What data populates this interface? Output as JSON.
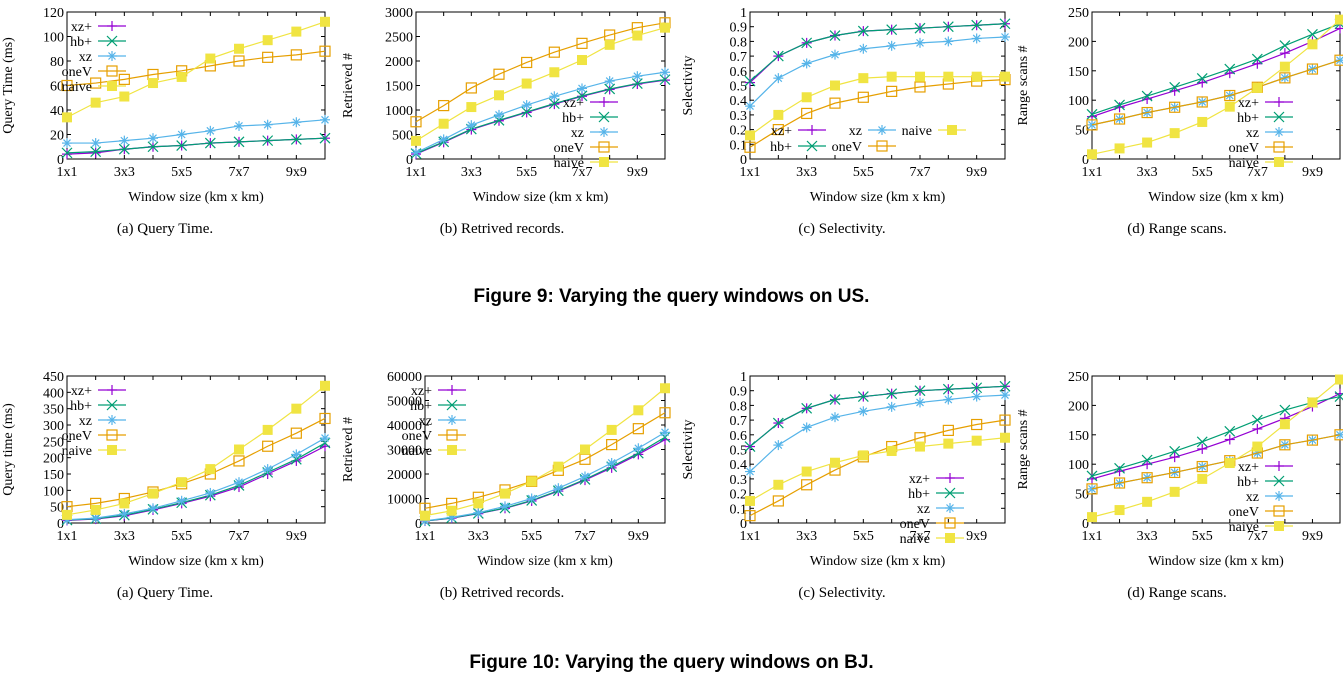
{
  "colors": {
    "xz+": "#9400d3",
    "hb+": "#009e73",
    "xz": "#56b4e9",
    "oneV": "#e69f00",
    "naive": "#f0e442"
  },
  "figures": [
    {
      "caption": "Figure 9: Varying the query windows on US."
    },
    {
      "caption": "Figure 10: Varying the query windows on BJ."
    }
  ],
  "chart_data": [
    {
      "id": "us_a",
      "type": "line",
      "subcaption": "(a)  Query Time.",
      "xlabel": "Window size (km x km)",
      "ylabel": "Query Time (ms)",
      "x": [
        1,
        2,
        3,
        4,
        5,
        6,
        7,
        8,
        9,
        10
      ],
      "xticks": [
        "1x1",
        "3x3",
        "5x5",
        "7x7",
        "9x9"
      ],
      "xtick_pos": [
        1,
        3,
        5,
        7,
        9
      ],
      "ylim": [
        0,
        120
      ],
      "yticks": [
        0,
        20,
        40,
        60,
        80,
        100,
        120
      ],
      "legend_position": "top-left",
      "series": [
        {
          "name": "xz+",
          "values": [
            4,
            5,
            8,
            10,
            11,
            13,
            14,
            15,
            16,
            17
          ]
        },
        {
          "name": "hb+",
          "values": [
            5,
            6,
            8,
            10,
            11,
            13,
            14,
            15,
            16,
            17
          ]
        },
        {
          "name": "xz",
          "values": [
            13,
            13,
            15,
            17,
            20,
            23,
            27,
            28,
            30,
            32
          ]
        },
        {
          "name": "oneV",
          "values": [
            60,
            62,
            65,
            69,
            72,
            76,
            80,
            83,
            85,
            88
          ]
        },
        {
          "name": "naive",
          "values": [
            34,
            46,
            51,
            62,
            67,
            82,
            90,
            97,
            104,
            112
          ]
        }
      ]
    },
    {
      "id": "us_b",
      "type": "line",
      "subcaption": "(b)  Retrived records.",
      "xlabel": "Window size (km x km)",
      "ylabel": "Retrieved #",
      "x": [
        1,
        2,
        3,
        4,
        5,
        6,
        7,
        8,
        9,
        10
      ],
      "xticks": [
        "1x1",
        "3x3",
        "5x5",
        "7x7",
        "9x9"
      ],
      "xtick_pos": [
        1,
        3,
        5,
        7,
        9
      ],
      "ylim": [
        0,
        3000
      ],
      "yticks": [
        0,
        500,
        1000,
        1500,
        2000,
        2500,
        3000
      ],
      "legend_position": "right",
      "series": [
        {
          "name": "xz+",
          "values": [
            100,
            340,
            600,
            780,
            950,
            1120,
            1280,
            1420,
            1530,
            1610
          ]
        },
        {
          "name": "hb+",
          "values": [
            110,
            350,
            610,
            790,
            960,
            1130,
            1290,
            1430,
            1540,
            1620
          ]
        },
        {
          "name": "xz",
          "values": [
            130,
            400,
            690,
            900,
            1100,
            1280,
            1440,
            1590,
            1690,
            1770
          ]
        },
        {
          "name": "oneV",
          "values": [
            760,
            1090,
            1450,
            1730,
            1970,
            2180,
            2360,
            2530,
            2680,
            2780
          ]
        },
        {
          "name": "naive",
          "values": [
            370,
            720,
            1060,
            1300,
            1540,
            1770,
            2020,
            2330,
            2520,
            2680
          ]
        }
      ]
    },
    {
      "id": "us_c",
      "type": "line",
      "subcaption": "(c)  Selectivity.",
      "xlabel": "Window size (km x km)",
      "ylabel": "Selectivity",
      "x": [
        1,
        2,
        3,
        4,
        5,
        6,
        7,
        8,
        9,
        10
      ],
      "xticks": [
        "1x1",
        "3x3",
        "5x5",
        "7x7",
        "9x9"
      ],
      "xtick_pos": [
        1,
        3,
        5,
        7,
        9
      ],
      "ylim": [
        0,
        1
      ],
      "yticks": [
        0,
        0.1,
        0.2,
        0.3,
        0.4,
        0.5,
        0.6,
        0.7,
        0.8,
        0.9,
        1
      ],
      "legend_position": "bottom",
      "series": [
        {
          "name": "xz+",
          "values": [
            0.52,
            0.7,
            0.79,
            0.84,
            0.87,
            0.88,
            0.89,
            0.9,
            0.91,
            0.92
          ]
        },
        {
          "name": "hb+",
          "values": [
            0.53,
            0.7,
            0.79,
            0.84,
            0.87,
            0.88,
            0.89,
            0.9,
            0.91,
            0.92
          ]
        },
        {
          "name": "xz",
          "values": [
            0.36,
            0.55,
            0.65,
            0.71,
            0.75,
            0.77,
            0.79,
            0.8,
            0.82,
            0.83
          ]
        },
        {
          "name": "oneV",
          "values": [
            0.08,
            0.2,
            0.31,
            0.38,
            0.42,
            0.46,
            0.49,
            0.51,
            0.53,
            0.54
          ]
        },
        {
          "name": "naive",
          "values": [
            0.16,
            0.3,
            0.42,
            0.5,
            0.55,
            0.56,
            0.56,
            0.56,
            0.56,
            0.56
          ]
        }
      ]
    },
    {
      "id": "us_d",
      "type": "line",
      "subcaption": "(d)  Range scans.",
      "xlabel": "Window size (km x km)",
      "ylabel": "Range scans #",
      "x": [
        1,
        2,
        3,
        4,
        5,
        6,
        7,
        8,
        9,
        10
      ],
      "xticks": [
        "1x1",
        "3x3",
        "5x5",
        "7x7",
        "9x9"
      ],
      "xtick_pos": [
        1,
        3,
        5,
        7,
        9
      ],
      "ylim": [
        0,
        250
      ],
      "yticks": [
        0,
        50,
        100,
        150,
        200,
        250
      ],
      "legend_position": "right",
      "series": [
        {
          "name": "xz+",
          "values": [
            72,
            88,
            102,
            116,
            130,
            146,
            162,
            180,
            200,
            222
          ]
        },
        {
          "name": "hb+",
          "values": [
            76,
            92,
            107,
            122,
            137,
            153,
            170,
            193,
            212,
            230
          ]
        },
        {
          "name": "xz",
          "values": [
            58,
            68,
            79,
            88,
            97,
            108,
            122,
            138,
            153,
            168
          ]
        },
        {
          "name": "oneV",
          "values": [
            58,
            68,
            79,
            88,
            97,
            108,
            122,
            138,
            153,
            168
          ]
        },
        {
          "name": "naive",
          "values": [
            8,
            18,
            28,
            44,
            63,
            89,
            121,
            157,
            195,
            237
          ]
        }
      ]
    },
    {
      "id": "bj_a",
      "type": "line",
      "subcaption": "(a)  Query Time.",
      "xlabel": "Window size (km x km)",
      "ylabel": "Query time (ms)",
      "x": [
        1,
        2,
        3,
        4,
        5,
        6,
        7,
        8,
        9,
        10
      ],
      "xticks": [
        "1x1",
        "3x3",
        "5x5",
        "7x7",
        "9x9"
      ],
      "xtick_pos": [
        1,
        3,
        5,
        7,
        9
      ],
      "ylim": [
        0,
        450
      ],
      "yticks": [
        0,
        50,
        100,
        150,
        200,
        250,
        300,
        350,
        400,
        450
      ],
      "legend_position": "top-left",
      "series": [
        {
          "name": "xz+",
          "values": [
            8,
            12,
            22,
            40,
            60,
            82,
            110,
            150,
            190,
            235
          ]
        },
        {
          "name": "hb+",
          "values": [
            9,
            13,
            24,
            42,
            62,
            85,
            115,
            155,
            195,
            245
          ]
        },
        {
          "name": "xz",
          "values": [
            10,
            15,
            28,
            45,
            68,
            92,
            125,
            165,
            210,
            260
          ]
        },
        {
          "name": "oneV",
          "values": [
            50,
            60,
            75,
            95,
            120,
            150,
            190,
            235,
            275,
            320
          ]
        },
        {
          "name": "naive",
          "values": [
            25,
            40,
            60,
            90,
            125,
            165,
            225,
            285,
            350,
            420
          ]
        }
      ]
    },
    {
      "id": "bj_b",
      "type": "line",
      "subcaption": "(b)  Retrived records.",
      "xlabel": "Window size (km x km)",
      "ylabel": "Retrieved #",
      "x": [
        1,
        2,
        3,
        4,
        5,
        6,
        7,
        8,
        9,
        10
      ],
      "xticks": [
        "1x1",
        "3x3",
        "5x5",
        "7x7",
        "9x9"
      ],
      "xtick_pos": [
        1,
        3,
        5,
        7,
        9
      ],
      "ylim": [
        0,
        60000
      ],
      "yticks": [
        0,
        10000,
        20000,
        30000,
        40000,
        50000,
        60000
      ],
      "legend_position": "top-left",
      "series": [
        {
          "name": "xz+",
          "values": [
            800,
            2000,
            3800,
            6000,
            9000,
            13000,
            17500,
            22500,
            28000,
            34000
          ]
        },
        {
          "name": "hb+",
          "values": [
            800,
            2100,
            3900,
            6100,
            9200,
            13200,
            17800,
            23000,
            28500,
            35000
          ]
        },
        {
          "name": "xz",
          "values": [
            900,
            2300,
            4200,
            6800,
            10000,
            14200,
            19000,
            24500,
            30500,
            37000
          ]
        },
        {
          "name": "oneV",
          "values": [
            6000,
            8000,
            10500,
            13500,
            17000,
            21500,
            26000,
            32000,
            38500,
            45000
          ]
        },
        {
          "name": "naive",
          "values": [
            3000,
            5000,
            8000,
            12000,
            17000,
            23000,
            30000,
            38000,
            46000,
            55000
          ]
        }
      ]
    },
    {
      "id": "bj_c",
      "type": "line",
      "subcaption": "(c)  Selectivity.",
      "xlabel": "Window size (km x km)",
      "ylabel": "Selectivity",
      "x": [
        1,
        2,
        3,
        4,
        5,
        6,
        7,
        8,
        9,
        10
      ],
      "xticks": [
        "1x1",
        "3x3",
        "5x5",
        "7x7",
        "9x9"
      ],
      "xtick_pos": [
        1,
        3,
        5,
        7,
        9
      ],
      "ylim": [
        0,
        1
      ],
      "yticks": [
        0,
        0.1,
        0.2,
        0.3,
        0.4,
        0.5,
        0.6,
        0.7,
        0.8,
        0.9,
        1
      ],
      "legend_position": "bottom-right",
      "series": [
        {
          "name": "xz+",
          "values": [
            0.52,
            0.68,
            0.78,
            0.84,
            0.86,
            0.88,
            0.9,
            0.91,
            0.92,
            0.93
          ]
        },
        {
          "name": "hb+",
          "values": [
            0.52,
            0.68,
            0.78,
            0.84,
            0.86,
            0.88,
            0.9,
            0.91,
            0.92,
            0.93
          ]
        },
        {
          "name": "xz",
          "values": [
            0.35,
            0.53,
            0.65,
            0.72,
            0.76,
            0.79,
            0.82,
            0.84,
            0.86,
            0.87
          ]
        },
        {
          "name": "oneV",
          "values": [
            0.05,
            0.15,
            0.26,
            0.36,
            0.45,
            0.52,
            0.58,
            0.63,
            0.67,
            0.7
          ]
        },
        {
          "name": "naive",
          "values": [
            0.15,
            0.26,
            0.35,
            0.41,
            0.46,
            0.49,
            0.52,
            0.54,
            0.56,
            0.58
          ]
        }
      ]
    },
    {
      "id": "bj_d",
      "type": "line",
      "subcaption": "(d)  Range scans.",
      "xlabel": "Window size (km x km)",
      "ylabel": "Range scans #",
      "x": [
        1,
        2,
        3,
        4,
        5,
        6,
        7,
        8,
        9,
        10
      ],
      "xticks": [
        "1x1",
        "3x3",
        "5x5",
        "7x7",
        "9x9"
      ],
      "xtick_pos": [
        1,
        3,
        5,
        7,
        9
      ],
      "ylim": [
        0,
        250
      ],
      "yticks": [
        0,
        50,
        100,
        150,
        200,
        250
      ],
      "legend_position": "right",
      "series": [
        {
          "name": "xz+",
          "values": [
            75,
            88,
            100,
            112,
            126,
            142,
            160,
            178,
            198,
            220
          ]
        },
        {
          "name": "hb+",
          "values": [
            80,
            93,
            107,
            122,
            138,
            156,
            175,
            192,
            205,
            215
          ]
        },
        {
          "name": "xz",
          "values": [
            58,
            68,
            77,
            86,
            96,
            106,
            119,
            133,
            141,
            150
          ]
        },
        {
          "name": "oneV",
          "values": [
            58,
            68,
            77,
            86,
            96,
            106,
            119,
            133,
            141,
            150
          ]
        },
        {
          "name": "naive",
          "values": [
            10,
            22,
            36,
            53,
            75,
            102,
            130,
            168,
            205,
            244
          ]
        }
      ]
    }
  ]
}
